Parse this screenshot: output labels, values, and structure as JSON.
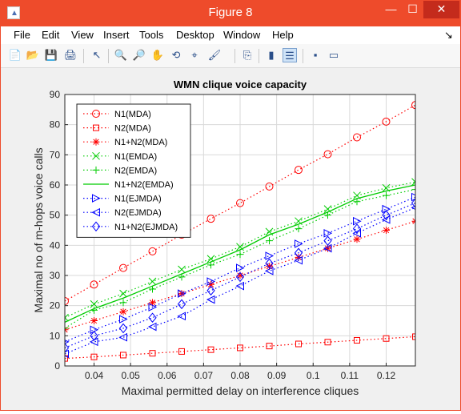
{
  "window": {
    "title": "Figure 8",
    "minimize_glyph": "—",
    "maximize_glyph": "☐",
    "close_glyph": "✕",
    "app_icon_glyph": "▲"
  },
  "menu": {
    "items": [
      "File",
      "Edit",
      "View",
      "Insert",
      "Tools",
      "Desktop",
      "Window",
      "Help"
    ],
    "dock_glyph": "↘"
  },
  "toolbar": {
    "icons": [
      "new-figure-icon",
      "open-file-icon",
      "save-icon",
      "print-icon",
      "edit-plot-arrow-icon",
      "zoom-in-icon",
      "zoom-out-icon",
      "pan-hand-icon",
      "rotate-3d-icon",
      "data-cursor-icon",
      "brush-icon",
      "link-plot-icon",
      "colorbar-icon",
      "legend-icon",
      "hide-plot-tools-icon",
      "show-plot-tools-icon"
    ],
    "glyphs": [
      "📄",
      "📂",
      "💾",
      "🖨",
      "↖",
      "🔍",
      "🔎",
      "✋",
      "⟲",
      "⌖",
      "🖌",
      "⎘",
      "▮",
      "☰",
      "▪",
      "▭"
    ]
  },
  "chart_data": {
    "type": "line",
    "title": "WMN clique voice capacity",
    "xlabel": "Maximal permitted delay on interference cliques",
    "ylabel": "Maximal no of m-hops voice calls",
    "xlim": [
      0.032,
      0.128
    ],
    "ylim": [
      0,
      90
    ],
    "xticks": [
      "0.04",
      "0.05",
      "0.06",
      "0.07",
      "0.08",
      "0.09",
      "0.1",
      "0.11",
      "0.12"
    ],
    "yticks": [
      "0",
      "10",
      "20",
      "30",
      "40",
      "50",
      "60",
      "70",
      "80",
      "90"
    ],
    "grid": true,
    "legend_position": "top-left",
    "x": [
      0.032,
      0.04,
      0.048,
      0.056,
      0.064,
      0.072,
      0.08,
      0.088,
      0.096,
      0.104,
      0.112,
      0.12,
      0.128
    ],
    "series": [
      {
        "name": "N1(MDA)",
        "color": "#ff0000",
        "marker": "circle",
        "line": "dotted",
        "values": [
          21.5,
          27,
          32.5,
          38,
          43.5,
          48.8,
          54,
          59.5,
          65,
          70.2,
          75.8,
          81,
          86.5
        ]
      },
      {
        "name": "N2(MDA)",
        "color": "#ff0000",
        "marker": "square",
        "line": "dotted",
        "values": [
          2.5,
          3,
          3.6,
          4.2,
          4.8,
          5.4,
          6,
          6.6,
          7.3,
          7.9,
          8.5,
          9.1,
          9.7
        ]
      },
      {
        "name": "N1+N2(MDA)",
        "color": "#ff0000",
        "marker": "asterisk",
        "line": "dotted",
        "values": [
          12,
          15,
          18,
          21,
          24,
          27,
          30,
          33,
          36,
          39,
          42,
          45,
          48
        ]
      },
      {
        "name": "N1(EMDA)",
        "color": "#00cc00",
        "marker": "x",
        "line": "dotted",
        "values": [
          16,
          20.5,
          24,
          28,
          32,
          35.5,
          39.5,
          44.5,
          48,
          52,
          56.5,
          59,
          61
        ]
      },
      {
        "name": "N2(EMDA)",
        "color": "#00cc00",
        "marker": "plus",
        "line": "dotted",
        "values": [
          12.5,
          18.5,
          21,
          25.5,
          29.5,
          33.5,
          37,
          41.5,
          45.5,
          50,
          54.5,
          56.5,
          58.5
        ]
      },
      {
        "name": "N1+N2(EMDA)",
        "color": "#00cc00",
        "marker": "none",
        "line": "solid",
        "values": [
          14.5,
          19,
          22.5,
          26.5,
          30.5,
          34.5,
          38.5,
          43.5,
          47,
          51,
          55.5,
          58,
          60
        ]
      },
      {
        "name": "N1(EJMDA)",
        "color": "#0000ff",
        "marker": "triangle-right",
        "line": "dotted",
        "values": [
          8,
          12,
          15.5,
          19.5,
          24,
          28,
          32.5,
          36.5,
          40.5,
          44,
          48,
          52,
          56
        ]
      },
      {
        "name": "N2(EJMDA)",
        "color": "#0000ff",
        "marker": "triangle-left",
        "line": "dotted",
        "values": [
          4,
          8,
          9.5,
          13,
          16.5,
          22,
          26.5,
          31.5,
          35,
          39,
          44,
          48.5,
          52.5
        ]
      },
      {
        "name": "N1+N2(EJMDA)",
        "color": "#0000ff",
        "marker": "diamond",
        "line": "dotted",
        "values": [
          6,
          10,
          12.5,
          16,
          20.5,
          25,
          29.5,
          34,
          37.5,
          41.5,
          45.5,
          50,
          54
        ]
      }
    ]
  }
}
